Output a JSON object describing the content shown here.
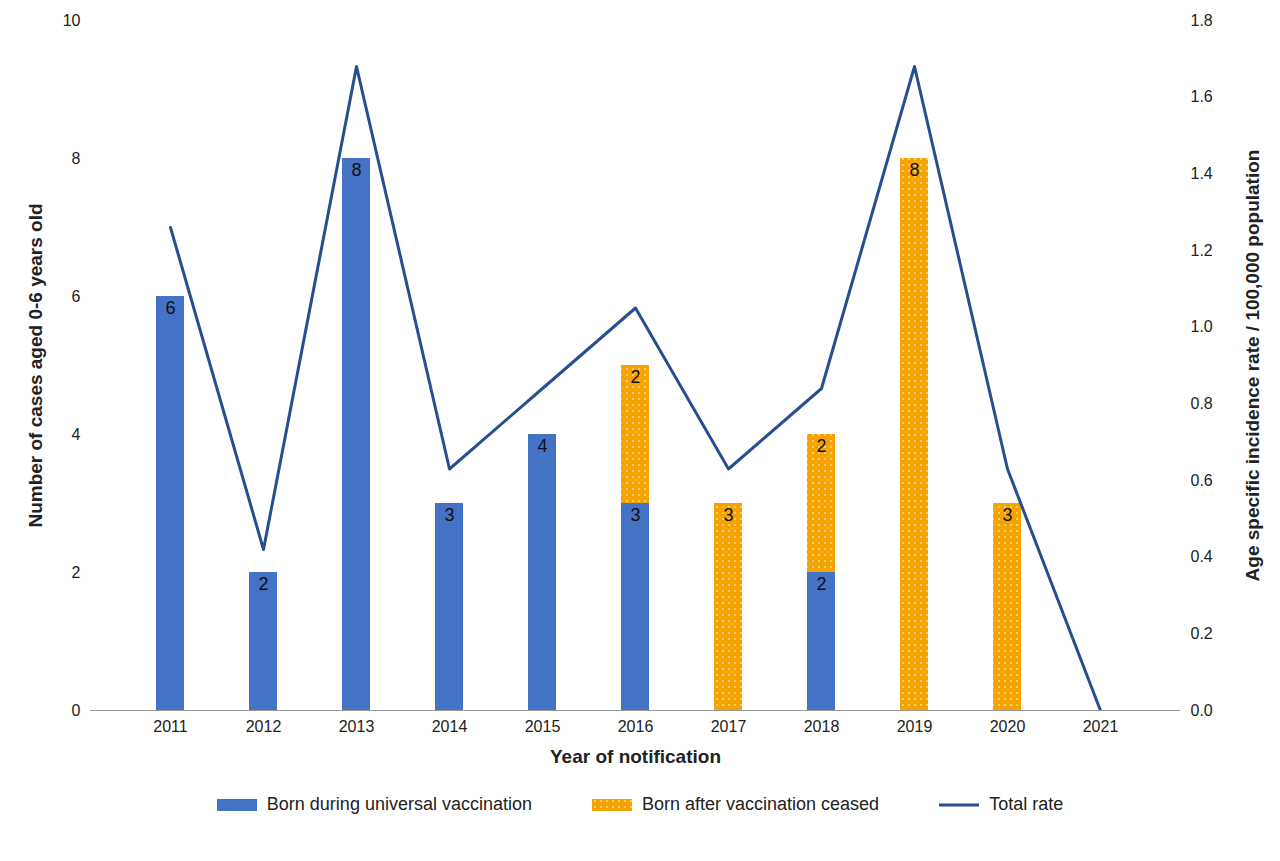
{
  "chart_data": {
    "type": "bar",
    "stacked": true,
    "data_labels": true,
    "legend": "bottom",
    "x_label": "Year of notification",
    "y_label": "Number of cases aged 0-6 years old",
    "y2_label": "Age specific incidence rate / 100,000 population",
    "categories": [
      "2011",
      "2012",
      "2013",
      "2014",
      "2015",
      "2016",
      "2017",
      "2018",
      "2019",
      "2020",
      "2021"
    ],
    "ylim": [
      0,
      10
    ],
    "yticks": [
      0,
      2,
      4,
      6,
      8,
      10
    ],
    "y2lim": [
      0,
      1.8
    ],
    "y2ticks": [
      {
        "value": 0,
        "label": "0.0"
      },
      0.2,
      0.4,
      0.6,
      0.8,
      {
        "value": 1,
        "label": "1.0"
      },
      1.2,
      1.4,
      1.6,
      1.8
    ],
    "series": [
      {
        "name": "Born during universal vaccination",
        "type": "bar",
        "color": "#4472c4",
        "values": [
          6,
          2,
          8,
          3,
          4,
          3,
          null,
          2,
          null,
          null,
          null
        ]
      },
      {
        "name": "Born after vaccination ceased",
        "type": "bar",
        "color": "#f5a300",
        "marker": "dots",
        "values": [
          null,
          null,
          null,
          null,
          null,
          2,
          3,
          2,
          8,
          3,
          null
        ]
      },
      {
        "name": "Total rate",
        "type": "line",
        "axis": "y2",
        "color": "#264f8f",
        "values": [
          1.26,
          0.42,
          1.68,
          0.63,
          0.84,
          1.05,
          0.63,
          0.84,
          1.68,
          0.63,
          0.0
        ]
      }
    ]
  }
}
